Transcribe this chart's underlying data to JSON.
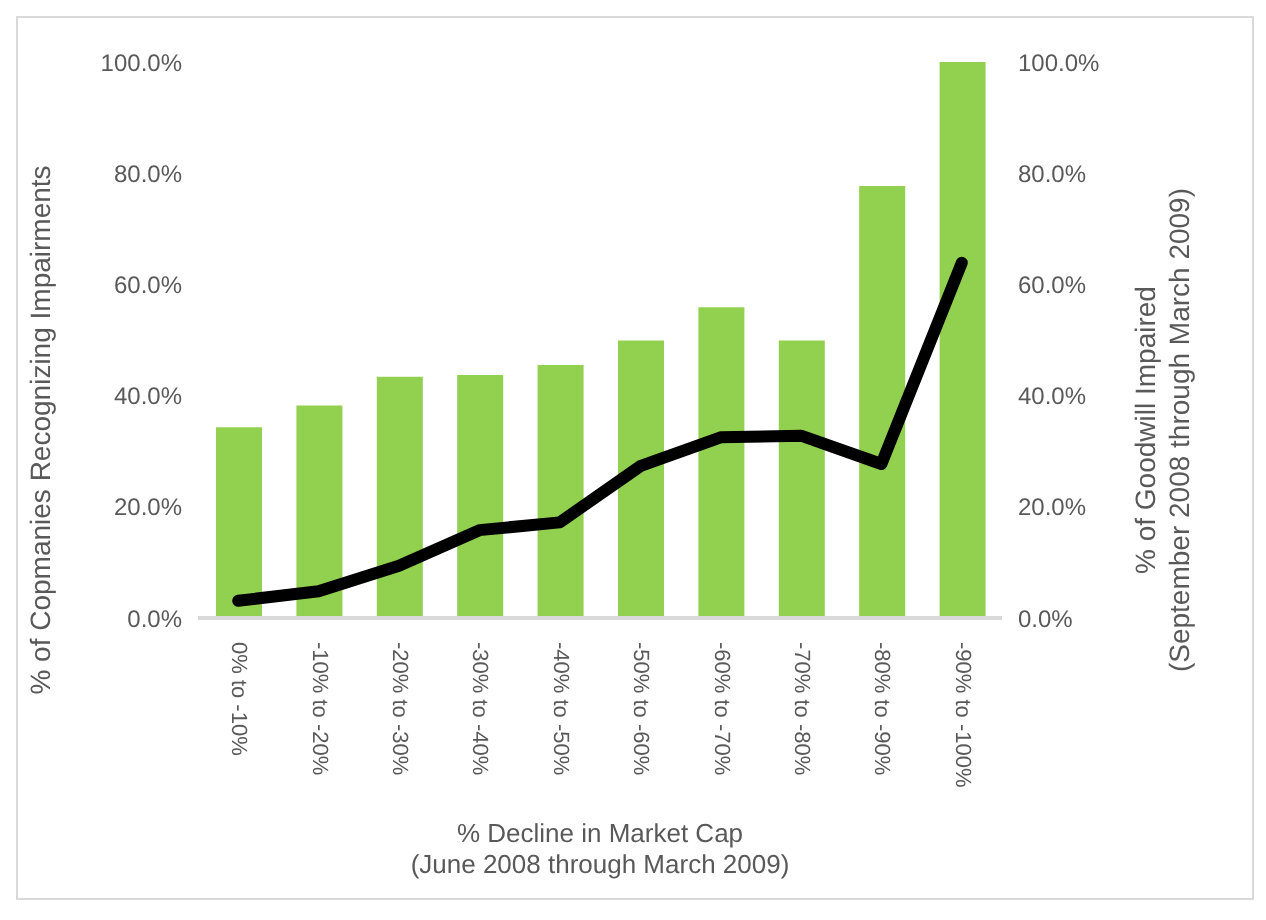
{
  "chart_data": {
    "type": "bar",
    "xlabel": "% Decline in Market Cap\n(June 2008 through March 2009)",
    "ylabel": "% of Copmanies Recognizing Impairments",
    "y2label": "% of Goodwill Impaired\n(September 2008 through March 2009)",
    "categories": [
      "0% to -10%",
      "-10% to -20%",
      "-20% to -30%",
      "-30% to -40%",
      "-40% to -50%",
      "-50% to -60%",
      "-60% to -70%",
      "-70% to -80%",
      "-80% to -90%",
      "-90% to -100%"
    ],
    "series": [
      {
        "color": "#92d050",
        "values": [
          34.3,
          38.2,
          43.4,
          43.7,
          45.5,
          49.9,
          55.9,
          49.9,
          77.7,
          100
        ]
      },
      {
        "type": "line",
        "axis": "y2",
        "color": "#000000",
        "values": [
          3.1,
          4.8,
          9.4,
          15.8,
          17.2,
          27.3,
          32.5,
          32.8,
          27.7,
          63.9
        ]
      }
    ],
    "ylim": [
      0,
      100
    ],
    "yticks": [
      {
        "value": 0,
        "label": "0.0%"
      },
      {
        "value": 20,
        "label": "20.0%"
      },
      {
        "value": 40,
        "label": "40.0%"
      },
      {
        "value": 60,
        "label": "60.0%"
      },
      {
        "value": 80,
        "label": "80.0%"
      },
      {
        "value": 100,
        "label": "100.0%"
      }
    ],
    "y2lim": [
      0,
      100
    ],
    "y2ticks": [
      {
        "value": 0,
        "label": "0.0%"
      },
      {
        "value": 20,
        "label": "20.0%"
      },
      {
        "value": 40,
        "label": "40.0%"
      },
      {
        "value": 60,
        "label": "60.0%"
      },
      {
        "value": 80,
        "label": "80.0%"
      },
      {
        "value": 100,
        "label": "100.0%"
      }
    ],
    "grid": false,
    "legend": false,
    "marker": "none",
    "line_style": "solid"
  }
}
